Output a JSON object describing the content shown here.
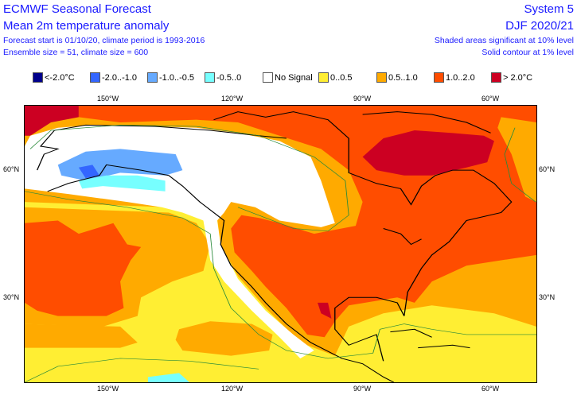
{
  "header": {
    "title": "ECMWF Seasonal Forecast",
    "subtitle": "Mean 2m temperature anomaly",
    "info1": "Forecast start is 01/10/20, climate period is 1993-2016",
    "info2": "Ensemble size = 51, climate size = 600",
    "system": "System 5",
    "season": "DJF 2020/21",
    "sig1": "Shaded areas significant at 10% level",
    "sig2": "Solid contour at 1% level"
  },
  "legend": [
    {
      "label": "<-2.0°C",
      "color": "#00008c"
    },
    {
      "label": "-2.0..-1.0",
      "color": "#3366ff"
    },
    {
      "label": "-1.0..-0.5",
      "color": "#66aaff"
    },
    {
      "label": "-0.5..0",
      "color": "#77ffff"
    },
    {
      "label": "No Signal",
      "color": "#ffffff"
    },
    {
      "label": "0..0.5",
      "color": "#ffee33"
    },
    {
      "label": "0.5..1.0",
      "color": "#ffaa00"
    },
    {
      "label": "1.0..2.0",
      "color": "#ff4d00"
    },
    {
      "label": "> 2.0°C",
      "color": "#cc0022"
    }
  ],
  "axes": {
    "lon": [
      "150°W",
      "120°W",
      "90°W",
      "60°W"
    ],
    "lat": [
      "60°N",
      "30°N"
    ]
  }
}
